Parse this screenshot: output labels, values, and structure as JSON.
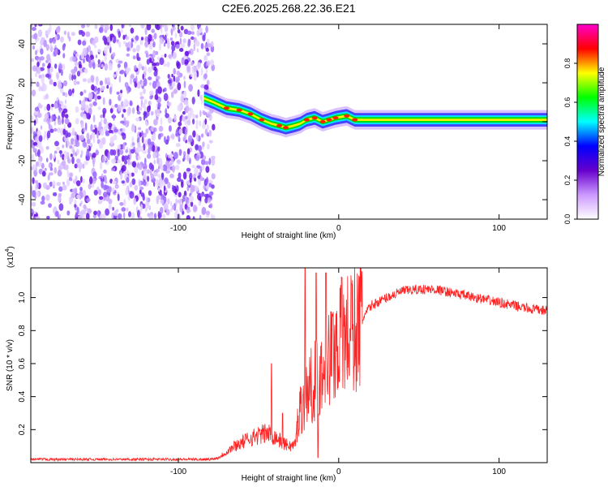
{
  "title": "C2E6.2025.268.22.36.E21",
  "chart_data": [
    {
      "type": "heatmap",
      "xlabel": "Height of straight line (km)",
      "ylabel": "Frequency (Hz)",
      "xlim": [
        -192,
        130
      ],
      "ylim": [
        -50,
        50
      ],
      "xticks": [
        -100,
        0,
        100
      ],
      "yticks": [
        -40,
        -20,
        0,
        20,
        40
      ],
      "colorbar": {
        "label": "Normalized spectral amplitude",
        "range": [
          0.0,
          1.0
        ],
        "ticks": [
          0.0,
          0.2,
          0.4,
          0.6,
          0.8
        ],
        "colors": [
          "#ffffff",
          "#cc99ff",
          "#6600cc",
          "#0000ff",
          "#00ffff",
          "#00ff00",
          "#ffff00",
          "#ff0000",
          "#ff00cc"
        ]
      },
      "noise_region_x": [
        -192,
        -78
      ],
      "peak_track": {
        "x": [
          -84,
          -78,
          -70,
          -62,
          -55,
          -48,
          -42,
          -37,
          -33,
          -28,
          -24,
          -20,
          -15,
          -10,
          -6,
          -2,
          5,
          10,
          20,
          40,
          60,
          80,
          100,
          130
        ],
        "freq": [
          12,
          10,
          7,
          6,
          4,
          1,
          -1,
          -2,
          -3,
          -2,
          -1,
          1,
          2,
          0,
          1,
          2,
          3,
          1,
          1,
          1,
          1,
          1,
          1,
          1
        ],
        "amplitude": [
          0.7,
          0.75,
          0.8,
          0.85,
          0.8,
          0.8,
          0.75,
          0.8,
          0.85,
          0.75,
          0.7,
          0.8,
          0.85,
          0.9,
          0.85,
          0.85,
          0.85,
          0.8,
          0.75,
          0.7,
          0.7,
          0.7,
          0.7,
          0.7
        ]
      }
    },
    {
      "type": "line",
      "xlabel": "Height of straight line (km)",
      "ylabel": "SNR (10 * v/v)",
      "yscale_label": "(x10",
      "yscale_exp": "4",
      "xlim": [
        -192,
        130
      ],
      "ylim": [
        0,
        1.18
      ],
      "xticks": [
        -100,
        0,
        100
      ],
      "yticks": [
        0.2,
        0.4,
        0.6,
        0.8,
        1.0
      ],
      "ytick_labels": [
        "0.2",
        "0.4",
        "0.6",
        "0.8",
        "1.0"
      ],
      "line_color": "#ff2222",
      "envelope": {
        "x": [
          -192,
          -80,
          -75,
          -65,
          -55,
          -45,
          -40,
          -35,
          -30,
          -27,
          -25,
          -20,
          -15,
          -10,
          -5,
          0,
          10,
          20,
          30,
          40,
          50,
          60,
          70,
          80,
          90,
          100,
          110,
          120,
          130
        ],
        "y": [
          0.02,
          0.02,
          0.03,
          0.1,
          0.15,
          0.18,
          0.16,
          0.12,
          0.1,
          0.11,
          0.3,
          0.42,
          0.5,
          0.55,
          0.65,
          0.75,
          0.8,
          0.95,
          1.0,
          1.04,
          1.05,
          1.05,
          1.03,
          1.01,
          0.99,
          0.97,
          0.95,
          0.93,
          0.92
        ]
      },
      "spikes": [
        {
          "x": -42,
          "y": 0.6
        },
        {
          "x": -35,
          "y": 0.3
        },
        {
          "x": -21,
          "y": 1.18
        },
        {
          "x": -19,
          "y": 0.3
        },
        {
          "x": -14,
          "y": 1.15
        },
        {
          "x": -13,
          "y": 0.03
        },
        {
          "x": -8,
          "y": 1.15
        },
        {
          "x": -4,
          "y": 0.9
        },
        {
          "x": 2,
          "y": 1.12
        },
        {
          "x": 8,
          "y": 1.08
        }
      ]
    }
  ]
}
